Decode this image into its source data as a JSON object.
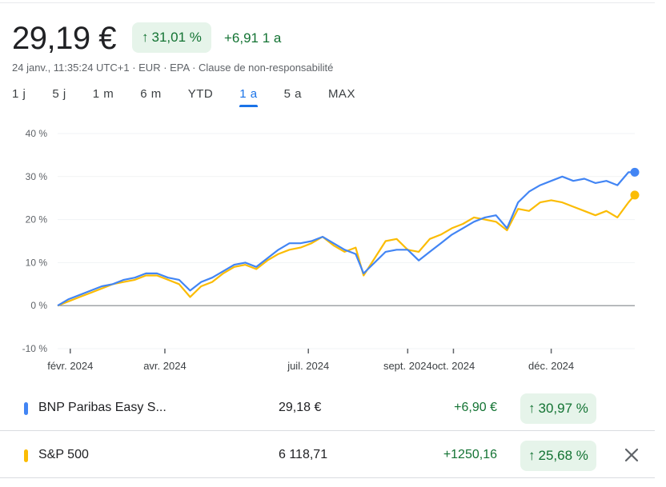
{
  "quote": {
    "price": "29,19 €",
    "change_pct": "31,01 %",
    "change_abs": "+6,91 1 a",
    "meta": "24 janv., 11:35:24 UTC+1 · EUR · EPA · Clause de non-responsabilité"
  },
  "periods": [
    "1 j",
    "5 j",
    "1 m",
    "6 m",
    "YTD",
    "1 a",
    "5 a",
    "MAX"
  ],
  "active_period": "1 a",
  "colors": {
    "series1": "#4285f4",
    "series2": "#fbbc04",
    "positive": "#137333",
    "badge_bg": "#e6f4ea"
  },
  "legend": [
    {
      "name": "BNP Paribas Easy S...",
      "price": "29,18 €",
      "change": "+6,90 €",
      "pct": "30,97 %",
      "color": "#4285f4"
    },
    {
      "name": "S&P 500",
      "price": "6 118,71",
      "change": "+1250,16",
      "pct": "25,68 %",
      "color": "#fbbc04",
      "close_icon": "close-icon"
    }
  ],
  "chart_data": {
    "type": "line",
    "y_ticks": [
      "40 %",
      "30 %",
      "20 %",
      "10 %",
      "0 %",
      "-10 %"
    ],
    "ylim": [
      -10,
      40
    ],
    "x_ticks": [
      {
        "label": "févr. 2024",
        "date": "2024-02-01"
      },
      {
        "label": "avr. 2024",
        "date": "2024-04-01"
      },
      {
        "label": "juil. 2024",
        "date": "2024-07-01"
      },
      {
        "label": "sept. 2024",
        "date": "2024-09-02"
      },
      {
        "label": "oct. 2024",
        "date": "2024-10-01"
      },
      {
        "label": "déc. 2024",
        "date": "2024-12-02"
      }
    ],
    "xlim": [
      "2024-01-24",
      "2025-01-24"
    ],
    "series": [
      {
        "name": "BNP Paribas Easy S...",
        "color": "#4285f4",
        "points": [
          [
            "2024-01-24",
            0
          ],
          [
            "2024-01-31",
            1.5
          ],
          [
            "2024-02-07",
            2.5
          ],
          [
            "2024-02-14",
            3.5
          ],
          [
            "2024-02-21",
            4.5
          ],
          [
            "2024-02-28",
            5.0
          ],
          [
            "2024-03-06",
            6.0
          ],
          [
            "2024-03-13",
            6.5
          ],
          [
            "2024-03-20",
            7.5
          ],
          [
            "2024-03-27",
            7.5
          ],
          [
            "2024-04-03",
            6.5
          ],
          [
            "2024-04-10",
            6.0
          ],
          [
            "2024-04-17",
            3.5
          ],
          [
            "2024-04-24",
            5.5
          ],
          [
            "2024-05-01",
            6.5
          ],
          [
            "2024-05-08",
            8.0
          ],
          [
            "2024-05-15",
            9.5
          ],
          [
            "2024-05-22",
            10.0
          ],
          [
            "2024-05-29",
            9.0
          ],
          [
            "2024-06-05",
            11.0
          ],
          [
            "2024-06-12",
            13.0
          ],
          [
            "2024-06-19",
            14.5
          ],
          [
            "2024-06-26",
            14.5
          ],
          [
            "2024-07-03",
            15.0
          ],
          [
            "2024-07-10",
            16.0
          ],
          [
            "2024-07-17",
            14.5
          ],
          [
            "2024-07-24",
            13.0
          ],
          [
            "2024-07-31",
            12.0
          ],
          [
            "2024-08-05",
            7.5
          ],
          [
            "2024-08-12",
            10.0
          ],
          [
            "2024-08-19",
            12.5
          ],
          [
            "2024-08-26",
            13.0
          ],
          [
            "2024-09-02",
            13.0
          ],
          [
            "2024-09-09",
            10.5
          ],
          [
            "2024-09-16",
            12.5
          ],
          [
            "2024-09-23",
            14.5
          ],
          [
            "2024-09-30",
            16.5
          ],
          [
            "2024-10-07",
            18.0
          ],
          [
            "2024-10-14",
            19.5
          ],
          [
            "2024-10-21",
            20.5
          ],
          [
            "2024-10-28",
            21.0
          ],
          [
            "2024-11-04",
            18.0
          ],
          [
            "2024-11-11",
            24.0
          ],
          [
            "2024-11-18",
            26.5
          ],
          [
            "2024-11-25",
            28.0
          ],
          [
            "2024-12-02",
            29.0
          ],
          [
            "2024-12-09",
            30.0
          ],
          [
            "2024-12-16",
            29.0
          ],
          [
            "2024-12-23",
            29.5
          ],
          [
            "2024-12-30",
            28.5
          ],
          [
            "2025-01-06",
            29.0
          ],
          [
            "2025-01-13",
            28.0
          ],
          [
            "2025-01-20",
            31.0
          ],
          [
            "2025-01-24",
            31.0
          ]
        ]
      },
      {
        "name": "S&P 500",
        "color": "#fbbc04",
        "points": [
          [
            "2024-01-24",
            0
          ],
          [
            "2024-01-31",
            1.0
          ],
          [
            "2024-02-07",
            2.0
          ],
          [
            "2024-02-14",
            3.0
          ],
          [
            "2024-02-21",
            4.0
          ],
          [
            "2024-02-28",
            5.0
          ],
          [
            "2024-03-06",
            5.5
          ],
          [
            "2024-03-13",
            6.0
          ],
          [
            "2024-03-20",
            7.0
          ],
          [
            "2024-03-27",
            7.0
          ],
          [
            "2024-04-03",
            6.0
          ],
          [
            "2024-04-10",
            5.0
          ],
          [
            "2024-04-17",
            2.0
          ],
          [
            "2024-04-24",
            4.5
          ],
          [
            "2024-05-01",
            5.5
          ],
          [
            "2024-05-08",
            7.5
          ],
          [
            "2024-05-15",
            9.0
          ],
          [
            "2024-05-22",
            9.5
          ],
          [
            "2024-05-29",
            8.5
          ],
          [
            "2024-06-05",
            10.5
          ],
          [
            "2024-06-12",
            12.0
          ],
          [
            "2024-06-19",
            13.0
          ],
          [
            "2024-06-26",
            13.5
          ],
          [
            "2024-07-03",
            14.5
          ],
          [
            "2024-07-10",
            16.0
          ],
          [
            "2024-07-17",
            14.0
          ],
          [
            "2024-07-24",
            12.5
          ],
          [
            "2024-07-31",
            13.5
          ],
          [
            "2024-08-05",
            7.0
          ],
          [
            "2024-08-12",
            11.0
          ],
          [
            "2024-08-19",
            15.0
          ],
          [
            "2024-08-26",
            15.5
          ],
          [
            "2024-09-02",
            13.0
          ],
          [
            "2024-09-09",
            12.5
          ],
          [
            "2024-09-16",
            15.5
          ],
          [
            "2024-09-23",
            16.5
          ],
          [
            "2024-09-30",
            18.0
          ],
          [
            "2024-10-07",
            19.0
          ],
          [
            "2024-10-14",
            20.5
          ],
          [
            "2024-10-21",
            20.0
          ],
          [
            "2024-10-28",
            19.5
          ],
          [
            "2024-11-04",
            17.5
          ],
          [
            "2024-11-11",
            22.5
          ],
          [
            "2024-11-18",
            22.0
          ],
          [
            "2024-11-25",
            24.0
          ],
          [
            "2024-12-02",
            24.5
          ],
          [
            "2024-12-09",
            24.0
          ],
          [
            "2024-12-16",
            23.0
          ],
          [
            "2024-12-23",
            22.0
          ],
          [
            "2024-12-30",
            21.0
          ],
          [
            "2025-01-06",
            22.0
          ],
          [
            "2025-01-13",
            20.5
          ],
          [
            "2025-01-20",
            24.0
          ],
          [
            "2025-01-24",
            25.7
          ]
        ]
      }
    ]
  }
}
